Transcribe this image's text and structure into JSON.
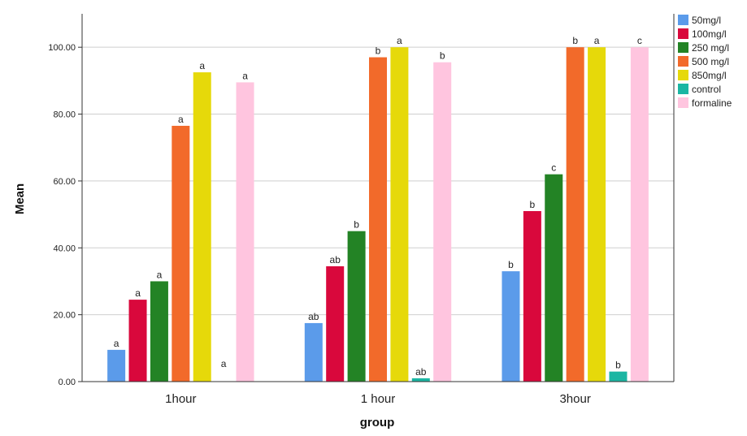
{
  "chart_data": {
    "type": "bar",
    "xlabel": "group",
    "ylabel": "Mean",
    "ylim": [
      0,
      110
    ],
    "yticks": [
      "0.00",
      "20.00",
      "40.00",
      "60.00",
      "80.00",
      "100.00"
    ],
    "ytick_values": [
      0,
      20,
      40,
      60,
      80,
      100
    ],
    "grid": true,
    "legend_position": "top-right",
    "categories": [
      "1hour",
      "1 hour",
      "3hour"
    ],
    "series": [
      {
        "name": "50mg/l",
        "color": "#5b9bea",
        "values": [
          9.5,
          17.5,
          33
        ],
        "labels": [
          "a",
          "ab",
          "b"
        ]
      },
      {
        "name": "100mg/l",
        "color": "#d9083c",
        "values": [
          24.5,
          34.5,
          51
        ],
        "labels": [
          "a",
          "ab",
          "b"
        ]
      },
      {
        "name": "250 mg/l",
        "color": "#238325",
        "values": [
          30,
          45,
          62
        ],
        "labels": [
          "a",
          "b",
          "c"
        ]
      },
      {
        "name": "500 mg/l",
        "color": "#f26a2a",
        "values": [
          76.5,
          97,
          100
        ],
        "labels": [
          "a",
          "b",
          "b"
        ]
      },
      {
        "name": "850mg/l",
        "color": "#e6d90a",
        "values": [
          92.5,
          100,
          100
        ],
        "labels": [
          "a",
          "a",
          "a"
        ]
      },
      {
        "name": "control",
        "color": "#1bb6a3",
        "values": [
          0,
          1,
          3
        ],
        "labels": [
          "a",
          "ab",
          "b"
        ]
      },
      {
        "name": "formaline",
        "color": "#ffc5df",
        "values": [
          89.5,
          95.5,
          100
        ],
        "labels": [
          "a",
          "b",
          "c"
        ]
      }
    ]
  }
}
